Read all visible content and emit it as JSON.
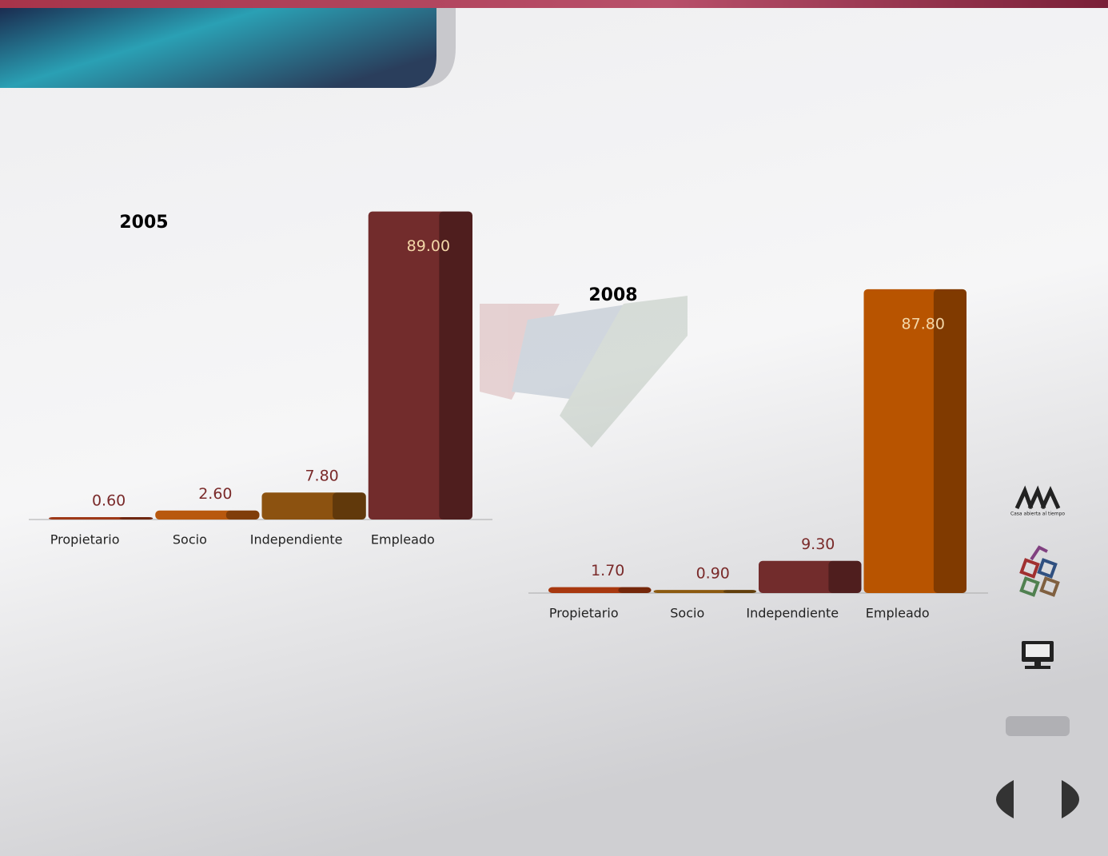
{
  "chart_data": [
    {
      "type": "bar",
      "title": "2005",
      "categories": [
        "Propietario",
        "Socio",
        "Independiente",
        "Empleado"
      ],
      "values": [
        0.6,
        2.6,
        7.8,
        89.0
      ],
      "value_labels": [
        "0.60",
        "2.60",
        "7.80",
        "89.00"
      ],
      "colors": [
        "#9e3818",
        "#b8580e",
        "#8c5210",
        "#722c2c"
      ]
    },
    {
      "type": "bar",
      "title": "2008",
      "categories": [
        "Propietario",
        "Socio",
        "Independiente",
        "Empleado"
      ],
      "values": [
        1.7,
        0.9,
        9.3,
        87.8
      ],
      "value_labels": [
        "1.70",
        "0.90",
        "9.30",
        "87.80"
      ],
      "colors": [
        "#a8380f",
        "#8c5a10",
        "#722c2c",
        "#b85400"
      ]
    }
  ],
  "logo": {
    "caption": "Casa abierta al tiempo"
  }
}
